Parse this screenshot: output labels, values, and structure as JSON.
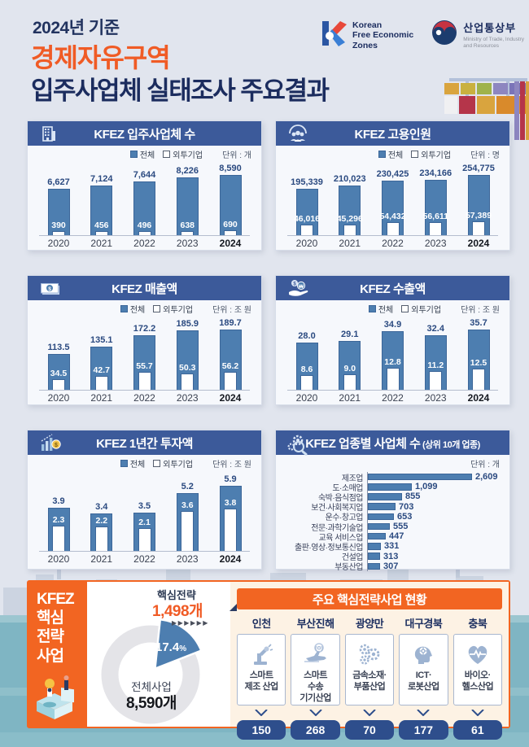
{
  "header": {
    "subtitle": "2024년 기준",
    "title_line1": "경제자유구역",
    "title_line2": "입주사업체 실태조사 주요결과",
    "kfez_logo": {
      "lines": [
        "Korean",
        "Free Economic",
        "Zones"
      ]
    },
    "motie_logo": {
      "name": "산업통상부",
      "sub_line1": "Ministry of Trade, Industry",
      "sub_line2": "and Resources"
    }
  },
  "legend": {
    "total": "전체",
    "fdi": "외투기업"
  },
  "colors": {
    "page_bg": "#e1e5ee",
    "navy_bar": "#3c5a9a",
    "bar_blue": "#4d7eb0",
    "bar_border": "#3c6699",
    "value_navy": "#2b4a80",
    "title_navy": "#1b2c5e",
    "accent_orange": "#f05b25",
    "section_orange": "#f26522",
    "cream": "#fdf2e4",
    "pill_navy": "#2e4e8c",
    "teal": "#7fb5c3",
    "donut_gray": "#e4e4e8"
  },
  "chart_data": [
    {
      "id": "tenants",
      "type": "bar",
      "icon": "building-icon",
      "title": "KFEZ 입주사업체 수",
      "unit": "단위 : 개",
      "categories": [
        "2020",
        "2021",
        "2022",
        "2023",
        "2024"
      ],
      "series": [
        {
          "name": "전체",
          "values": [
            6627,
            7124,
            7644,
            8226,
            8590
          ],
          "labels": [
            "6,627",
            "7,124",
            "7,644",
            "8,226",
            "8,590"
          ]
        },
        {
          "name": "외투기업",
          "values": [
            390,
            456,
            496,
            638,
            690
          ],
          "labels": [
            "390",
            "456",
            "496",
            "638",
            "690"
          ]
        }
      ]
    },
    {
      "id": "employment",
      "type": "bar",
      "icon": "workers-icon",
      "title": "KFEZ 고용인원",
      "unit": "단위 : 명",
      "categories": [
        "2020",
        "2021",
        "2022",
        "2023",
        "2024"
      ],
      "series": [
        {
          "name": "전체",
          "values": [
            195339,
            210023,
            230425,
            234166,
            254775
          ],
          "labels": [
            "195,339",
            "210,023",
            "230,425",
            "234,166",
            "254,775"
          ]
        },
        {
          "name": "외투기업",
          "values": [
            46016,
            45296,
            54432,
            56611,
            57389
          ],
          "labels": [
            "46,016",
            "45,296",
            "54,432",
            "56,611",
            "57,389"
          ]
        }
      ]
    },
    {
      "id": "sales",
      "type": "bar",
      "icon": "banknote-icon",
      "title": "KFEZ 매출액",
      "unit": "단위 : 조 원",
      "categories": [
        "2020",
        "2021",
        "2022",
        "2023",
        "2024"
      ],
      "series": [
        {
          "name": "전체",
          "values": [
            113.5,
            135.1,
            172.2,
            185.9,
            189.7
          ],
          "labels": [
            "113.5",
            "135.1",
            "172.2",
            "185.9",
            "189.7"
          ]
        },
        {
          "name": "외투기업",
          "values": [
            34.5,
            42.7,
            55.7,
            50.3,
            56.2
          ],
          "labels": [
            "34.5",
            "42.7",
            "55.7",
            "50.3",
            "56.2"
          ]
        }
      ]
    },
    {
      "id": "exports",
      "type": "bar",
      "icon": "hand-coin-icon",
      "title": "KFEZ 수출액",
      "unit": "단위 : 조 원",
      "categories": [
        "2020",
        "2021",
        "2022",
        "2023",
        "2024"
      ],
      "series": [
        {
          "name": "전체",
          "values": [
            28.0,
            29.1,
            34.9,
            32.4,
            35.7
          ],
          "labels": [
            "28.0",
            "29.1",
            "34.9",
            "32.4",
            "35.7"
          ]
        },
        {
          "name": "외투기업",
          "values": [
            8.6,
            9.0,
            12.8,
            11.2,
            12.5
          ],
          "labels": [
            "8.6",
            "9.0",
            "12.8",
            "11.2",
            "12.5"
          ]
        }
      ]
    },
    {
      "id": "investment",
      "type": "bar",
      "icon": "investment-chart-icon",
      "title": "KFEZ 1년간 투자액",
      "unit": "단위 : 조 원",
      "categories": [
        "2020",
        "2021",
        "2022",
        "2023",
        "2024"
      ],
      "series": [
        {
          "name": "전체",
          "values": [
            3.9,
            3.4,
            3.5,
            5.2,
            5.9
          ],
          "labels": [
            "3.9",
            "3.4",
            "3.5",
            "5.2",
            "5.9"
          ]
        },
        {
          "name": "외투기업",
          "values": [
            2.3,
            2.2,
            2.1,
            3.6,
            3.8
          ],
          "labels": [
            "2.3",
            "2.2",
            "2.1",
            "3.6",
            "3.8"
          ]
        }
      ]
    },
    {
      "id": "industries",
      "type": "hbar",
      "icon": "gear-magnifier-icon",
      "title": "KFEZ 업종별 사업체 수",
      "title_suffix": "(상위 10개 업종)",
      "unit": "단위 : 개",
      "categories": [
        "제조업",
        "도·소매업",
        "숙박·음식점업",
        "보건·사회복지업",
        "운수·창고업",
        "전문·과학기술업",
        "교육 서비스업",
        "출판·영상·정보통신업",
        "건설업",
        "부동산업"
      ],
      "values": [
        2609,
        1099,
        855,
        703,
        653,
        555,
        447,
        331,
        313,
        307
      ],
      "labels": [
        "2,609",
        "1,099",
        "855",
        "703",
        "653",
        "555",
        "447",
        "331",
        "313",
        "307"
      ]
    }
  ],
  "strategy": {
    "sidebar_lines": [
      "KFEZ",
      "핵심",
      "전략",
      "사업"
    ],
    "donut": {
      "type": "pie",
      "highlight_label": "핵심전략",
      "highlight_value": "1,498개",
      "pct": 17.4,
      "pct_label": "17.4",
      "chevrons": "▶▶▶▶▶▶",
      "center_label": "전체사업",
      "center_value": "8,590개"
    },
    "status": {
      "title": "주요 핵심전략사업 현황",
      "items": [
        {
          "region": "인천",
          "industry_lines": [
            "스마트",
            "제조 산업"
          ],
          "count": "150",
          "icon": "robot-arm-icon"
        },
        {
          "region": "부산진해",
          "industry_lines": [
            "스마트",
            "수송",
            "기기산업"
          ],
          "count": "268",
          "icon": "transport-icon"
        },
        {
          "region": "광양만",
          "industry_lines": [
            "금속소재·",
            "부품산업"
          ],
          "count": "70",
          "icon": "gears-icon"
        },
        {
          "region": "대구경북",
          "industry_lines": [
            "ICT·",
            "로봇산업"
          ],
          "count": "177",
          "icon": "ict-robot-icon"
        },
        {
          "region": "충북",
          "industry_lines": [
            "바이오·",
            "헬스산업"
          ],
          "count": "61",
          "icon": "bio-health-icon"
        }
      ]
    }
  }
}
